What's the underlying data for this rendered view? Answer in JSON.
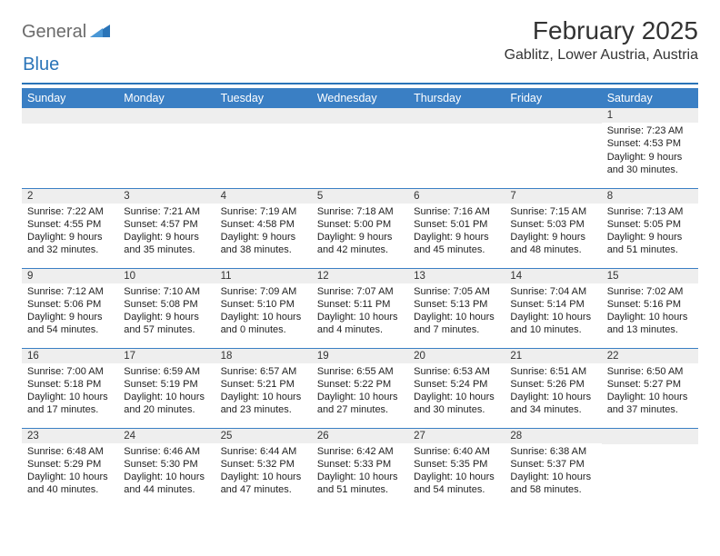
{
  "logo": {
    "text1": "General",
    "text2": "Blue"
  },
  "header": {
    "title": "February 2025",
    "location": "Gablitz, Lower Austria, Austria"
  },
  "colors": {
    "header_bg": "#3a7fc4",
    "header_text": "#ffffff",
    "rule": "#2a74b8",
    "daynum_bg": "#eeeeee",
    "logo_general": "#6b6b6b",
    "logo_blue": "#2a74b8",
    "text": "#222222"
  },
  "dayNames": [
    "Sunday",
    "Monday",
    "Tuesday",
    "Wednesday",
    "Thursday",
    "Friday",
    "Saturday"
  ],
  "weeks": [
    [
      {
        "day": "",
        "sunrise": "",
        "sunset": "",
        "daylight": ""
      },
      {
        "day": "",
        "sunrise": "",
        "sunset": "",
        "daylight": ""
      },
      {
        "day": "",
        "sunrise": "",
        "sunset": "",
        "daylight": ""
      },
      {
        "day": "",
        "sunrise": "",
        "sunset": "",
        "daylight": ""
      },
      {
        "day": "",
        "sunrise": "",
        "sunset": "",
        "daylight": ""
      },
      {
        "day": "",
        "sunrise": "",
        "sunset": "",
        "daylight": ""
      },
      {
        "day": "1",
        "sunrise": "Sunrise: 7:23 AM",
        "sunset": "Sunset: 4:53 PM",
        "daylight": "Daylight: 9 hours and 30 minutes."
      }
    ],
    [
      {
        "day": "2",
        "sunrise": "Sunrise: 7:22 AM",
        "sunset": "Sunset: 4:55 PM",
        "daylight": "Daylight: 9 hours and 32 minutes."
      },
      {
        "day": "3",
        "sunrise": "Sunrise: 7:21 AM",
        "sunset": "Sunset: 4:57 PM",
        "daylight": "Daylight: 9 hours and 35 minutes."
      },
      {
        "day": "4",
        "sunrise": "Sunrise: 7:19 AM",
        "sunset": "Sunset: 4:58 PM",
        "daylight": "Daylight: 9 hours and 38 minutes."
      },
      {
        "day": "5",
        "sunrise": "Sunrise: 7:18 AM",
        "sunset": "Sunset: 5:00 PM",
        "daylight": "Daylight: 9 hours and 42 minutes."
      },
      {
        "day": "6",
        "sunrise": "Sunrise: 7:16 AM",
        "sunset": "Sunset: 5:01 PM",
        "daylight": "Daylight: 9 hours and 45 minutes."
      },
      {
        "day": "7",
        "sunrise": "Sunrise: 7:15 AM",
        "sunset": "Sunset: 5:03 PM",
        "daylight": "Daylight: 9 hours and 48 minutes."
      },
      {
        "day": "8",
        "sunrise": "Sunrise: 7:13 AM",
        "sunset": "Sunset: 5:05 PM",
        "daylight": "Daylight: 9 hours and 51 minutes."
      }
    ],
    [
      {
        "day": "9",
        "sunrise": "Sunrise: 7:12 AM",
        "sunset": "Sunset: 5:06 PM",
        "daylight": "Daylight: 9 hours and 54 minutes."
      },
      {
        "day": "10",
        "sunrise": "Sunrise: 7:10 AM",
        "sunset": "Sunset: 5:08 PM",
        "daylight": "Daylight: 9 hours and 57 minutes."
      },
      {
        "day": "11",
        "sunrise": "Sunrise: 7:09 AM",
        "sunset": "Sunset: 5:10 PM",
        "daylight": "Daylight: 10 hours and 0 minutes."
      },
      {
        "day": "12",
        "sunrise": "Sunrise: 7:07 AM",
        "sunset": "Sunset: 5:11 PM",
        "daylight": "Daylight: 10 hours and 4 minutes."
      },
      {
        "day": "13",
        "sunrise": "Sunrise: 7:05 AM",
        "sunset": "Sunset: 5:13 PM",
        "daylight": "Daylight: 10 hours and 7 minutes."
      },
      {
        "day": "14",
        "sunrise": "Sunrise: 7:04 AM",
        "sunset": "Sunset: 5:14 PM",
        "daylight": "Daylight: 10 hours and 10 minutes."
      },
      {
        "day": "15",
        "sunrise": "Sunrise: 7:02 AM",
        "sunset": "Sunset: 5:16 PM",
        "daylight": "Daylight: 10 hours and 13 minutes."
      }
    ],
    [
      {
        "day": "16",
        "sunrise": "Sunrise: 7:00 AM",
        "sunset": "Sunset: 5:18 PM",
        "daylight": "Daylight: 10 hours and 17 minutes."
      },
      {
        "day": "17",
        "sunrise": "Sunrise: 6:59 AM",
        "sunset": "Sunset: 5:19 PM",
        "daylight": "Daylight: 10 hours and 20 minutes."
      },
      {
        "day": "18",
        "sunrise": "Sunrise: 6:57 AM",
        "sunset": "Sunset: 5:21 PM",
        "daylight": "Daylight: 10 hours and 23 minutes."
      },
      {
        "day": "19",
        "sunrise": "Sunrise: 6:55 AM",
        "sunset": "Sunset: 5:22 PM",
        "daylight": "Daylight: 10 hours and 27 minutes."
      },
      {
        "day": "20",
        "sunrise": "Sunrise: 6:53 AM",
        "sunset": "Sunset: 5:24 PM",
        "daylight": "Daylight: 10 hours and 30 minutes."
      },
      {
        "day": "21",
        "sunrise": "Sunrise: 6:51 AM",
        "sunset": "Sunset: 5:26 PM",
        "daylight": "Daylight: 10 hours and 34 minutes."
      },
      {
        "day": "22",
        "sunrise": "Sunrise: 6:50 AM",
        "sunset": "Sunset: 5:27 PM",
        "daylight": "Daylight: 10 hours and 37 minutes."
      }
    ],
    [
      {
        "day": "23",
        "sunrise": "Sunrise: 6:48 AM",
        "sunset": "Sunset: 5:29 PM",
        "daylight": "Daylight: 10 hours and 40 minutes."
      },
      {
        "day": "24",
        "sunrise": "Sunrise: 6:46 AM",
        "sunset": "Sunset: 5:30 PM",
        "daylight": "Daylight: 10 hours and 44 minutes."
      },
      {
        "day": "25",
        "sunrise": "Sunrise: 6:44 AM",
        "sunset": "Sunset: 5:32 PM",
        "daylight": "Daylight: 10 hours and 47 minutes."
      },
      {
        "day": "26",
        "sunrise": "Sunrise: 6:42 AM",
        "sunset": "Sunset: 5:33 PM",
        "daylight": "Daylight: 10 hours and 51 minutes."
      },
      {
        "day": "27",
        "sunrise": "Sunrise: 6:40 AM",
        "sunset": "Sunset: 5:35 PM",
        "daylight": "Daylight: 10 hours and 54 minutes."
      },
      {
        "day": "28",
        "sunrise": "Sunrise: 6:38 AM",
        "sunset": "Sunset: 5:37 PM",
        "daylight": "Daylight: 10 hours and 58 minutes."
      },
      {
        "day": "",
        "sunrise": "",
        "sunset": "",
        "daylight": ""
      }
    ]
  ]
}
